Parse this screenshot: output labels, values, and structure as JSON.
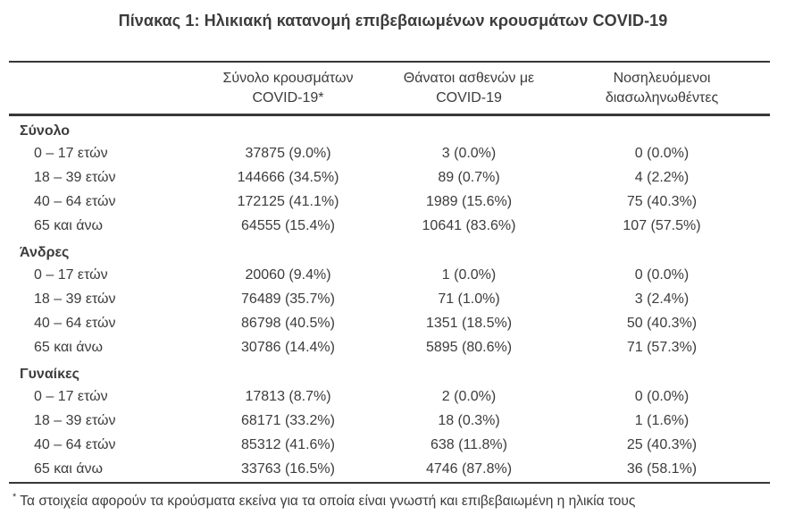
{
  "title": "Πίνακας 1: Ηλικιακή κατανομή επιβεβαιωμένων κρουσμάτων COVID-19",
  "table": {
    "columns": [
      {
        "line1": "",
        "line2": ""
      },
      {
        "line1": "Σύνολο κρουσμάτων",
        "line2": "COVID-19*"
      },
      {
        "line1": "Θάνατοι ασθενών με",
        "line2": "COVID-19"
      },
      {
        "line1": "Νοσηλευόμενοι",
        "line2": "διασωληνωθέντες"
      }
    ],
    "sections": [
      {
        "label": "Σύνολο",
        "rows": [
          {
            "age": "0 – 17 ετών",
            "cases": "37875 (9.0%)",
            "deaths": "3 (0.0%)",
            "intubated": "0 (0.0%)"
          },
          {
            "age": "18 – 39 ετών",
            "cases": "144666 (34.5%)",
            "deaths": "89 (0.7%)",
            "intubated": "4 (2.2%)"
          },
          {
            "age": "40 – 64 ετών",
            "cases": "172125 (41.1%)",
            "deaths": "1989 (15.6%)",
            "intubated": "75 (40.3%)"
          },
          {
            "age": "65 και άνω",
            "cases": "64555 (15.4%)",
            "deaths": "10641 (83.6%)",
            "intubated": "107 (57.5%)"
          }
        ]
      },
      {
        "label": "Άνδρες",
        "rows": [
          {
            "age": "0 – 17 ετών",
            "cases": "20060 (9.4%)",
            "deaths": "1 (0.0%)",
            "intubated": "0 (0.0%)"
          },
          {
            "age": "18 – 39 ετών",
            "cases": "76489 (35.7%)",
            "deaths": "71 (1.0%)",
            "intubated": "3 (2.4%)"
          },
          {
            "age": "40 – 64 ετών",
            "cases": "86798 (40.5%)",
            "deaths": "1351 (18.5%)",
            "intubated": "50 (40.3%)"
          },
          {
            "age": "65 και άνω",
            "cases": "30786 (14.4%)",
            "deaths": "5895 (80.6%)",
            "intubated": "71 (57.3%)"
          }
        ]
      },
      {
        "label": "Γυναίκες",
        "rows": [
          {
            "age": "0 – 17 ετών",
            "cases": "17813 (8.7%)",
            "deaths": "2 (0.0%)",
            "intubated": "0 (0.0%)"
          },
          {
            "age": "18 – 39 ετών",
            "cases": "68171 (33.2%)",
            "deaths": "18 (0.3%)",
            "intubated": "1 (1.6%)"
          },
          {
            "age": "40 – 64 ετών",
            "cases": "85312 (41.6%)",
            "deaths": "638 (11.8%)",
            "intubated": "25 (40.3%)"
          },
          {
            "age": "65 και άνω",
            "cases": "33763 (16.5%)",
            "deaths": "4746 (87.8%)",
            "intubated": "36 (58.1%)"
          }
        ]
      }
    ]
  },
  "footnote": {
    "marker": "*",
    "text": "Τα στοιχεία αφορούν τα κρούσματα εκείνα για τα οποία είναι γνωστή και επιβεβαιωμένη η ηλικία τους"
  },
  "colors": {
    "text": "#3c3c3c",
    "rule": "#383838",
    "background": "#ffffff"
  }
}
